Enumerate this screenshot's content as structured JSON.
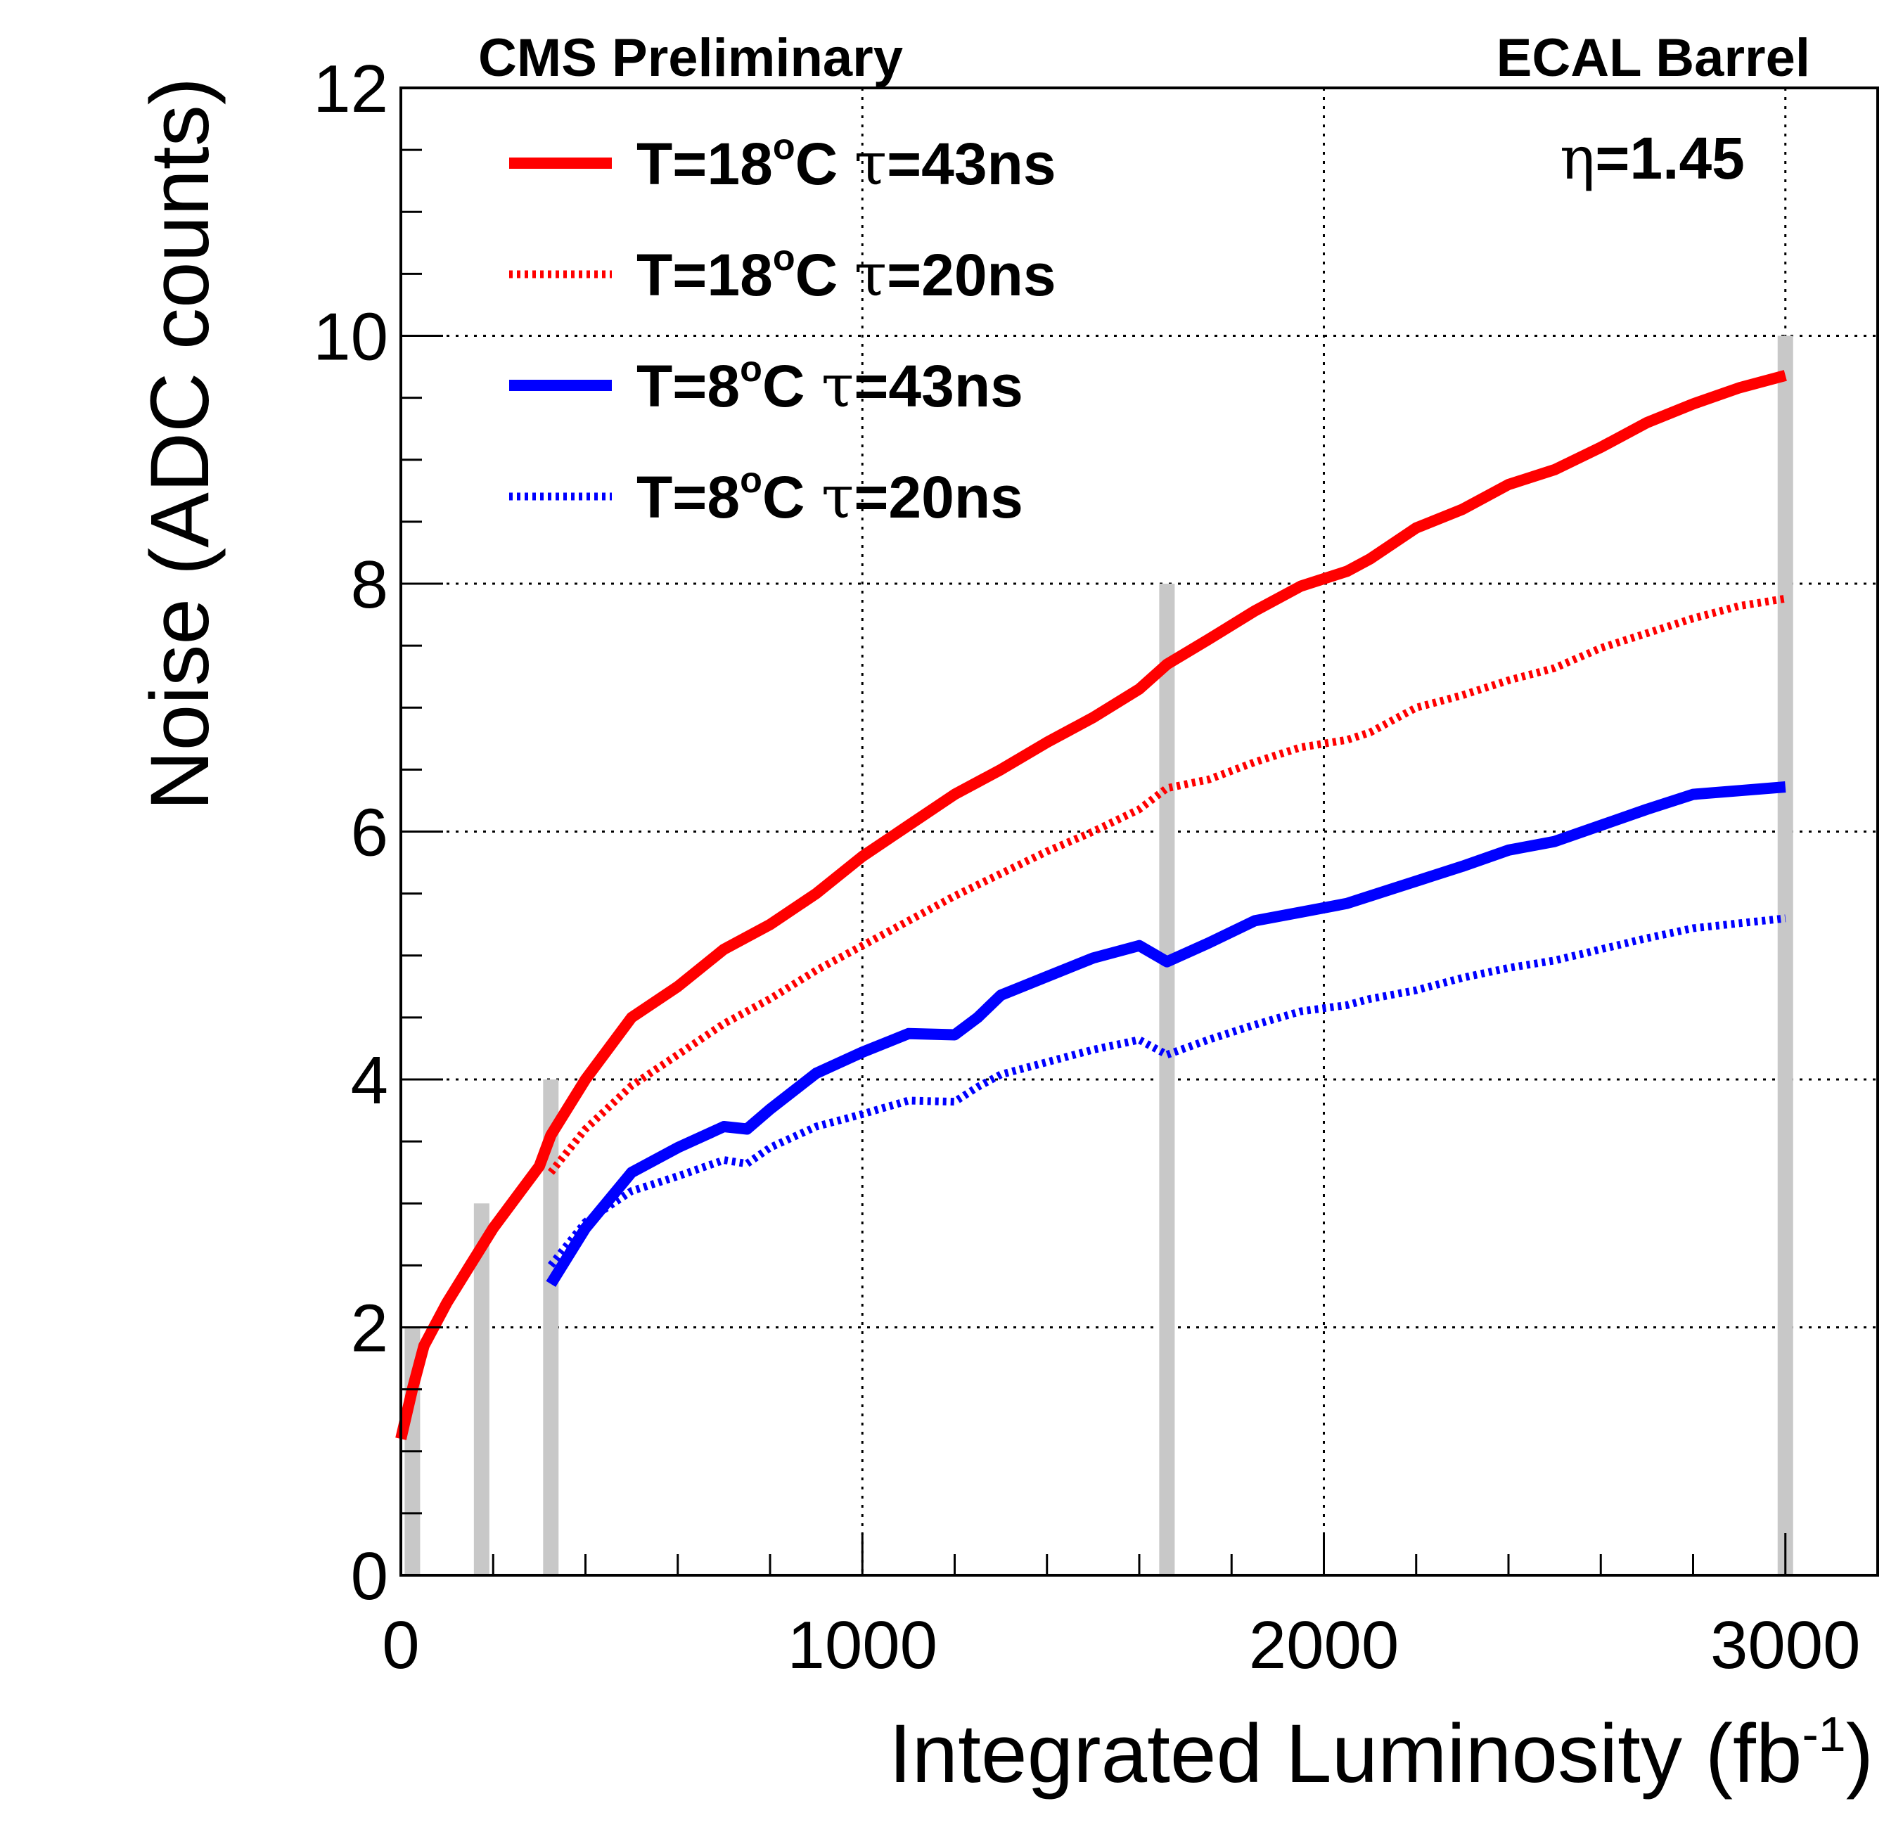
{
  "chart_data": {
    "type": "line",
    "header_left": "CMS Preliminary",
    "header_right": "ECAL Barrel",
    "annotation": {
      "symbol": "η",
      "text": "=1.45"
    },
    "xlabel": {
      "main": "Integrated Luminosity (fb",
      "sup": "-1",
      "close": ")"
    },
    "ylabel": "Noise (ADC counts)",
    "xlim": [
      0,
      3200
    ],
    "ylim": [
      0,
      12
    ],
    "xticks": [
      "0",
      "1000",
      "2000",
      "3000"
    ],
    "xtick_values": [
      0,
      1000,
      2000,
      3000
    ],
    "yticks": [
      "0",
      "2",
      "4",
      "6",
      "8",
      "10",
      "12"
    ],
    "ytick_values": [
      0,
      2,
      4,
      6,
      8,
      10,
      12
    ],
    "grid": true,
    "legend_position": "top-left",
    "markers": [
      {
        "x": 25,
        "y": 2
      },
      {
        "x": 175,
        "y": 3
      },
      {
        "x": 325,
        "y": 4
      },
      {
        "x": 1660,
        "y": 8
      },
      {
        "x": 3000,
        "y": 10
      }
    ],
    "marker_color": "#c8c8c8",
    "series": [
      {
        "name_pre": "T=18",
        "name_sup": "o",
        "name_mid": "C ",
        "name_tau": "τ",
        "name_post": "=43ns",
        "color": "#ff0000",
        "style": "solid",
        "x": [
          0,
          25,
          50,
          100,
          150,
          200,
          250,
          300,
          325,
          400,
          500,
          600,
          700,
          800,
          900,
          1000,
          1100,
          1200,
          1300,
          1400,
          1500,
          1600,
          1660,
          1750,
          1850,
          1950,
          2050,
          2100,
          2200,
          2300,
          2400,
          2500,
          2600,
          2700,
          2800,
          2900,
          3000
        ],
        "y": [
          1.1,
          1.5,
          1.85,
          2.2,
          2.5,
          2.8,
          3.05,
          3.3,
          3.55,
          4.0,
          4.5,
          4.75,
          5.05,
          5.25,
          5.5,
          5.8,
          6.05,
          6.3,
          6.5,
          6.72,
          6.92,
          7.15,
          7.35,
          7.55,
          7.78,
          7.98,
          8.1,
          8.2,
          8.45,
          8.6,
          8.8,
          8.92,
          9.1,
          9.3,
          9.45,
          9.58,
          9.68
        ]
      },
      {
        "name_pre": "T=18",
        "name_sup": "o",
        "name_mid": "C ",
        "name_tau": "τ",
        "name_post": "=20ns",
        "color": "#ff0000",
        "style": "dotted",
        "x": [
          325,
          400,
          500,
          600,
          700,
          800,
          900,
          1000,
          1100,
          1200,
          1300,
          1400,
          1500,
          1600,
          1660,
          1750,
          1850,
          1950,
          2050,
          2100,
          2200,
          2300,
          2400,
          2500,
          2600,
          2700,
          2800,
          2900,
          3000
        ],
        "y": [
          3.25,
          3.6,
          3.95,
          4.2,
          4.45,
          4.65,
          4.88,
          5.08,
          5.28,
          5.48,
          5.66,
          5.84,
          6.0,
          6.18,
          6.35,
          6.42,
          6.56,
          6.68,
          6.74,
          6.8,
          7.0,
          7.1,
          7.22,
          7.32,
          7.48,
          7.6,
          7.72,
          7.82,
          7.88
        ]
      },
      {
        "name_pre": "T=8",
        "name_sup": "o",
        "name_mid": "C ",
        "name_tau": "τ",
        "name_post": "=43ns",
        "color": "#0000ff",
        "style": "solid",
        "x": [
          325,
          400,
          500,
          600,
          700,
          750,
          800,
          900,
          1000,
          1100,
          1200,
          1250,
          1300,
          1400,
          1500,
          1600,
          1660,
          1750,
          1850,
          1950,
          2050,
          2100,
          2200,
          2300,
          2400,
          2500,
          2600,
          2700,
          2800,
          2900,
          3000
        ],
        "y": [
          2.35,
          2.8,
          3.25,
          3.45,
          3.62,
          3.6,
          3.76,
          4.05,
          4.22,
          4.37,
          4.36,
          4.5,
          4.68,
          4.83,
          4.98,
          5.08,
          4.95,
          5.1,
          5.28,
          5.35,
          5.42,
          5.48,
          5.6,
          5.72,
          5.85,
          5.92,
          6.05,
          6.18,
          6.3,
          6.33,
          6.36
        ]
      },
      {
        "name_pre": "T=8",
        "name_sup": "o",
        "name_mid": "C ",
        "name_tau": "τ",
        "name_post": "=20ns",
        "color": "#0000ff",
        "style": "dotted",
        "x": [
          325,
          400,
          500,
          600,
          700,
          750,
          800,
          900,
          1000,
          1100,
          1200,
          1250,
          1300,
          1400,
          1500,
          1600,
          1660,
          1750,
          1850,
          1950,
          2050,
          2100,
          2200,
          2300,
          2400,
          2500,
          2600,
          2700,
          2800,
          2900,
          3000
        ],
        "y": [
          2.5,
          2.85,
          3.1,
          3.22,
          3.35,
          3.32,
          3.45,
          3.62,
          3.72,
          3.83,
          3.82,
          3.94,
          4.04,
          4.14,
          4.24,
          4.32,
          4.2,
          4.32,
          4.44,
          4.55,
          4.6,
          4.65,
          4.72,
          4.82,
          4.9,
          4.96,
          5.05,
          5.14,
          5.22,
          5.26,
          5.3
        ]
      }
    ]
  }
}
